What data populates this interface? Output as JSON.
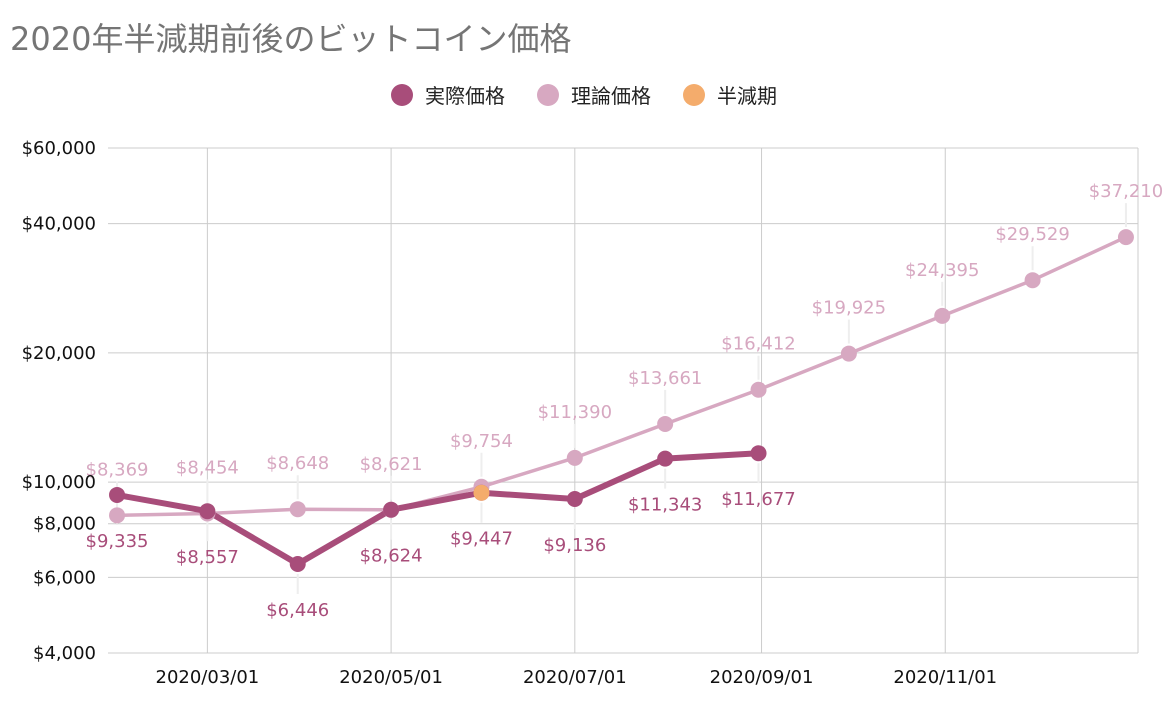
{
  "colors": {
    "actual": "#a84d7a",
    "theory": "#d7a8c1",
    "halving": "#f4ac6c",
    "grid": "#cccccc",
    "title": "#757575"
  },
  "chart_data": {
    "type": "line",
    "title": "2020年半減期前後のビットコイン価格",
    "xlabel": "",
    "ylabel": "",
    "y_scale": "log",
    "ylim": [
      4000,
      60000
    ],
    "y_ticks": [
      4000,
      6000,
      8000,
      10000,
      20000,
      40000,
      60000
    ],
    "y_tick_labels": [
      "$4,000",
      "$6,000",
      "$8,000",
      "$10,000",
      "$20,000",
      "$40,000",
      "$60,000"
    ],
    "x_ticks": [
      "2020-03-01",
      "2020-05-01",
      "2020-07-01",
      "2020-09-01",
      "2020-11-01"
    ],
    "x_tick_labels": [
      "2020/03/01",
      "2020/05/01",
      "2020/07/01",
      "2020/09/01",
      "2020/11/01"
    ],
    "xlim": [
      "2020-01-28",
      "2021-01-04"
    ],
    "grid": true,
    "legend": "top",
    "series": [
      {
        "name": "実際価格",
        "x": [
          "2020-01-31",
          "2020-03-01",
          "2020-03-31",
          "2020-05-01",
          "2020-05-31",
          "2020-07-01",
          "2020-07-31",
          "2020-08-31"
        ],
        "values": [
          9335,
          8557,
          6446,
          8624,
          9447,
          9136,
          11343,
          11677
        ],
        "labels": [
          "$9,335",
          "$8,557",
          "$6,446",
          "$8,624",
          "$9,447",
          "$9,136",
          "$11,343",
          "$11,677"
        ]
      },
      {
        "name": "理論価格",
        "x": [
          "2020-01-31",
          "2020-03-01",
          "2020-03-31",
          "2020-05-01",
          "2020-05-31",
          "2020-07-01",
          "2020-07-31",
          "2020-08-31",
          "2020-09-30",
          "2020-10-31",
          "2020-11-30",
          "2020-12-31"
        ],
        "values": [
          8369,
          8454,
          8648,
          8621,
          9754,
          11390,
          13661,
          16412,
          19925,
          24395,
          29529,
          37210
        ],
        "labels": [
          "$8,369",
          "$8,454",
          "$8,648",
          "$8,621",
          "$9,754",
          "$11,390",
          "$13,661",
          "$16,412",
          "$19,925",
          "$24,395",
          "$29,529",
          "$37,210"
        ]
      },
      {
        "name": "半減期",
        "x": [
          "2020-05-31"
        ],
        "values": [
          9447
        ]
      }
    ]
  }
}
